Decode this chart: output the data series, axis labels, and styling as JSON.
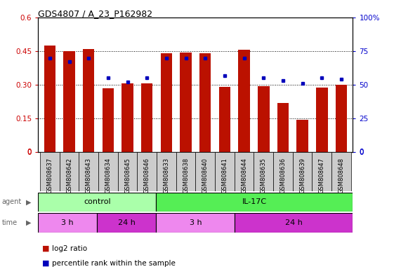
{
  "title": "GDS4807 / A_23_P162982",
  "samples": [
    "GSM808637",
    "GSM808642",
    "GSM808643",
    "GSM808634",
    "GSM808645",
    "GSM808646",
    "GSM808633",
    "GSM808638",
    "GSM808640",
    "GSM808641",
    "GSM808644",
    "GSM808635",
    "GSM808636",
    "GSM808639",
    "GSM808647",
    "GSM808648"
  ],
  "log2_ratio": [
    0.475,
    0.45,
    0.46,
    0.285,
    0.305,
    0.305,
    0.44,
    0.445,
    0.44,
    0.292,
    0.455,
    0.295,
    0.22,
    0.145,
    0.287,
    0.3
  ],
  "percentile_rank": [
    70,
    67,
    70,
    55,
    52,
    55,
    70,
    70,
    70,
    57,
    70,
    55,
    53,
    51,
    55,
    54
  ],
  "ylim_left": [
    0,
    0.6
  ],
  "ylim_right": [
    0,
    100
  ],
  "yticks_left": [
    0,
    0.15,
    0.3,
    0.45,
    0.6
  ],
  "yticks_right": [
    0,
    25,
    50,
    75,
    100
  ],
  "agent_groups": [
    {
      "label": "control",
      "start": 0,
      "end": 6,
      "color": "#AAFFAA"
    },
    {
      "label": "IL-17C",
      "start": 6,
      "end": 16,
      "color": "#55EE55"
    }
  ],
  "time_groups": [
    {
      "label": "3 h",
      "start": 0,
      "end": 3,
      "color": "#EE88EE"
    },
    {
      "label": "24 h",
      "start": 3,
      "end": 6,
      "color": "#CC33CC"
    },
    {
      "label": "3 h",
      "start": 6,
      "end": 10,
      "color": "#EE88EE"
    },
    {
      "label": "24 h",
      "start": 10,
      "end": 16,
      "color": "#CC33CC"
    }
  ],
  "bar_color": "#BB1100",
  "dot_color": "#0000BB",
  "grid_color": "#000000",
  "bg_color": "#FFFFFF",
  "tick_label_color_left": "#CC0000",
  "tick_label_color_right": "#0000CC",
  "agent_label_color": "#666666",
  "time_label_color": "#666666",
  "xtick_bg_color": "#CCCCCC",
  "legend_items": [
    {
      "label": "log2 ratio",
      "color": "#BB1100"
    },
    {
      "label": "percentile rank within the sample",
      "color": "#0000BB"
    }
  ]
}
